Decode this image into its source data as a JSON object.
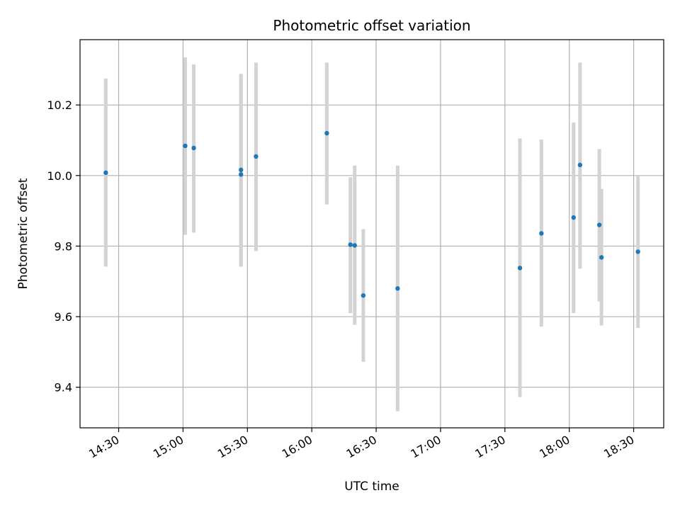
{
  "chart_data": {
    "type": "scatter",
    "title": "Photometric offset variation",
    "xlabel": "UTC time",
    "ylabel": "Photometric offset",
    "xlim": [
      "14:12",
      "18:44"
    ],
    "ylim": [
      9.285,
      10.385
    ],
    "xticks": [
      "14:30",
      "15:00",
      "15:30",
      "16:00",
      "16:30",
      "17:00",
      "17:30",
      "18:00",
      "18:30"
    ],
    "yticks": [
      9.4,
      9.6,
      9.8,
      10.0,
      10.2
    ],
    "ytick_labels": [
      "9.4",
      "9.6",
      "9.8",
      "10.0",
      "10.2"
    ],
    "grid": true,
    "colors": {
      "points": "#1f77b4",
      "errorbars": "#d3d3d3",
      "grid": "#b0b0b0"
    },
    "points": [
      {
        "x": "14:24",
        "y": 10.008,
        "yerr_low": 9.742,
        "yerr_high": 10.275
      },
      {
        "x": "15:01",
        "y": 10.084,
        "yerr_low": 9.832,
        "yerr_high": 10.335
      },
      {
        "x": "15:05",
        "y": 10.078,
        "yerr_low": 9.838,
        "yerr_high": 10.315
      },
      {
        "x": "15:27",
        "y": 10.016,
        "yerr_low": 9.742,
        "yerr_high": 10.288
      },
      {
        "x": "15:27",
        "y": 10.003,
        "yerr_low": 9.742,
        "yerr_high": 10.288
      },
      {
        "x": "15:34",
        "y": 10.054,
        "yerr_low": 9.786,
        "yerr_high": 10.32
      },
      {
        "x": "16:07",
        "y": 10.12,
        "yerr_low": 9.918,
        "yerr_high": 10.32
      },
      {
        "x": "16:18",
        "y": 9.804,
        "yerr_low": 9.61,
        "yerr_high": 9.995
      },
      {
        "x": "16:20",
        "y": 9.802,
        "yerr_low": 9.577,
        "yerr_high": 10.028
      },
      {
        "x": "16:24",
        "y": 9.66,
        "yerr_low": 9.472,
        "yerr_high": 9.848
      },
      {
        "x": "16:40",
        "y": 9.68,
        "yerr_low": 9.332,
        "yerr_high": 10.028
      },
      {
        "x": "17:37",
        "y": 9.738,
        "yerr_low": 9.372,
        "yerr_high": 10.105
      },
      {
        "x": "17:47",
        "y": 9.836,
        "yerr_low": 9.572,
        "yerr_high": 10.102
      },
      {
        "x": "18:02",
        "y": 9.881,
        "yerr_low": 9.61,
        "yerr_high": 10.15
      },
      {
        "x": "18:05",
        "y": 10.03,
        "yerr_low": 9.736,
        "yerr_high": 10.32
      },
      {
        "x": "18:14",
        "y": 9.86,
        "yerr_low": 9.643,
        "yerr_high": 10.075
      },
      {
        "x": "18:15",
        "y": 9.768,
        "yerr_low": 9.575,
        "yerr_high": 9.962
      },
      {
        "x": "18:32",
        "y": 9.784,
        "yerr_low": 9.568,
        "yerr_high": 9.998
      }
    ]
  }
}
